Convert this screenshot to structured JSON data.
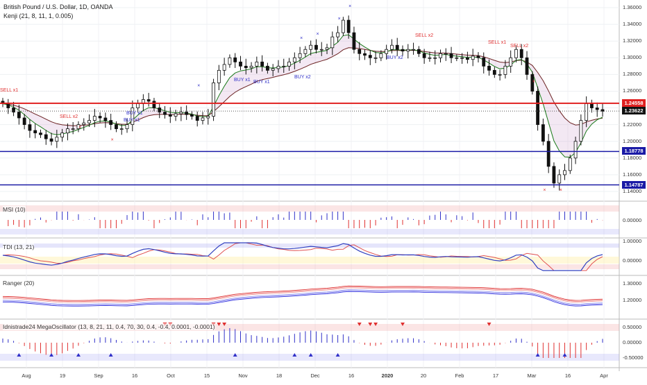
{
  "header": {
    "symbol_line": "British Pound / U.S. Dollar, 1D, OANDA",
    "indicator_line": "Kenji (21, 8, 11, 1, 0.005)"
  },
  "price_axis": {
    "ticks": [
      "1.36000",
      "1.34000",
      "1.32000",
      "1.30000",
      "1.28000",
      "1.26000",
      "1.24000",
      "1.22000",
      "1.20000",
      "1.18000",
      "1.16000",
      "1.14000"
    ]
  },
  "price_tags": [
    {
      "value": "1.24558",
      "color": "#e02020"
    },
    {
      "value": "1.23622",
      "color": "#111111"
    },
    {
      "value": "1.18778",
      "color": "#1a1aa6"
    },
    {
      "value": "1.14787",
      "color": "#1a1aa6"
    }
  ],
  "signals": [
    {
      "text": "SELL x1",
      "type": "sell"
    },
    {
      "text": "SELL x2",
      "type": "sell"
    },
    {
      "text": "BUY x1",
      "type": "buy"
    },
    {
      "text": "BUY x1",
      "type": "buy"
    },
    {
      "text": "BUY x1",
      "type": "buy"
    },
    {
      "text": "BUY x1",
      "type": "buy"
    },
    {
      "text": "BUY x2",
      "type": "buy"
    },
    {
      "text": "BUY x2",
      "type": "buy"
    },
    {
      "text": "SELL x2",
      "type": "sell"
    },
    {
      "text": "SELL x1",
      "type": "sell"
    },
    {
      "text": "SELL x2",
      "type": "sell"
    }
  ],
  "panes": {
    "msi": {
      "title": "MSI (10)",
      "ticks": [
        "0.00000"
      ]
    },
    "tdi": {
      "title": "TDI (13, 21)",
      "ticks": [
        "1.00000",
        "0.00000"
      ]
    },
    "ranger": {
      "title": "Ranger (20)",
      "ticks": [
        "1.30000",
        "1.20000"
      ]
    },
    "mega": {
      "title": "Idnistrade24 MegaOscillator (13, 8, 21, 11, 0.4, 70, 30, 0.4, -0.4, 0.0001, -0.0001)",
      "ticks": [
        "0.50000",
        "0.00000",
        "-0.50000"
      ]
    }
  },
  "date_axis": [
    "Aug",
    "19",
    "Sep",
    "16",
    "Oct",
    "15",
    "Nov",
    "18",
    "Dec",
    "16",
    "2020",
    "20",
    "Feb",
    "17",
    "Mar",
    "16",
    "Apr"
  ],
  "colors": {
    "sell": "#e03030",
    "buy": "#3030c8",
    "ema_fast": "#1a7a1a",
    "ema_slow": "#6a2020"
  },
  "chart_data": {
    "type": "candlestick",
    "title": "British Pound / U.S. Dollar, 1D, OANDA",
    "ylim": [
      1.135,
      1.365
    ],
    "horizontal_levels": [
      1.24558,
      1.23622,
      1.18778,
      1.14787
    ],
    "close_path": [
      1.245,
      1.24,
      1.235,
      1.228,
      1.22,
      1.213,
      1.21,
      1.208,
      1.203,
      1.2,
      1.205,
      1.21,
      1.215,
      1.215,
      1.22,
      1.222,
      1.225,
      1.23,
      1.228,
      1.225,
      1.22,
      1.215,
      1.215,
      1.22,
      1.24,
      1.245,
      1.25,
      1.248,
      1.24,
      1.235,
      1.232,
      1.23,
      1.233,
      1.235,
      1.232,
      1.23,
      1.225,
      1.228,
      1.23,
      1.27,
      1.285,
      1.292,
      1.3,
      1.295,
      1.29,
      1.288,
      1.29,
      1.295,
      1.29,
      1.285,
      1.287,
      1.29,
      1.29,
      1.295,
      1.3,
      1.305,
      1.31,
      1.315,
      1.31,
      1.31,
      1.312,
      1.325,
      1.33,
      1.345,
      1.33,
      1.31,
      1.305,
      1.303,
      1.3,
      1.3,
      1.305,
      1.31,
      1.315,
      1.31,
      1.308,
      1.31,
      1.31,
      1.305,
      1.3,
      1.3,
      1.3,
      1.305,
      1.305,
      1.3,
      1.3,
      1.3,
      1.298,
      1.302,
      1.3,
      1.29,
      1.285,
      1.28,
      1.28,
      1.29,
      1.3,
      1.31,
      1.3,
      1.28,
      1.26,
      1.22,
      1.2,
      1.17,
      1.15,
      1.16,
      1.165,
      1.18,
      1.2,
      1.225,
      1.245,
      1.24,
      1.238,
      1.236
    ]
  }
}
